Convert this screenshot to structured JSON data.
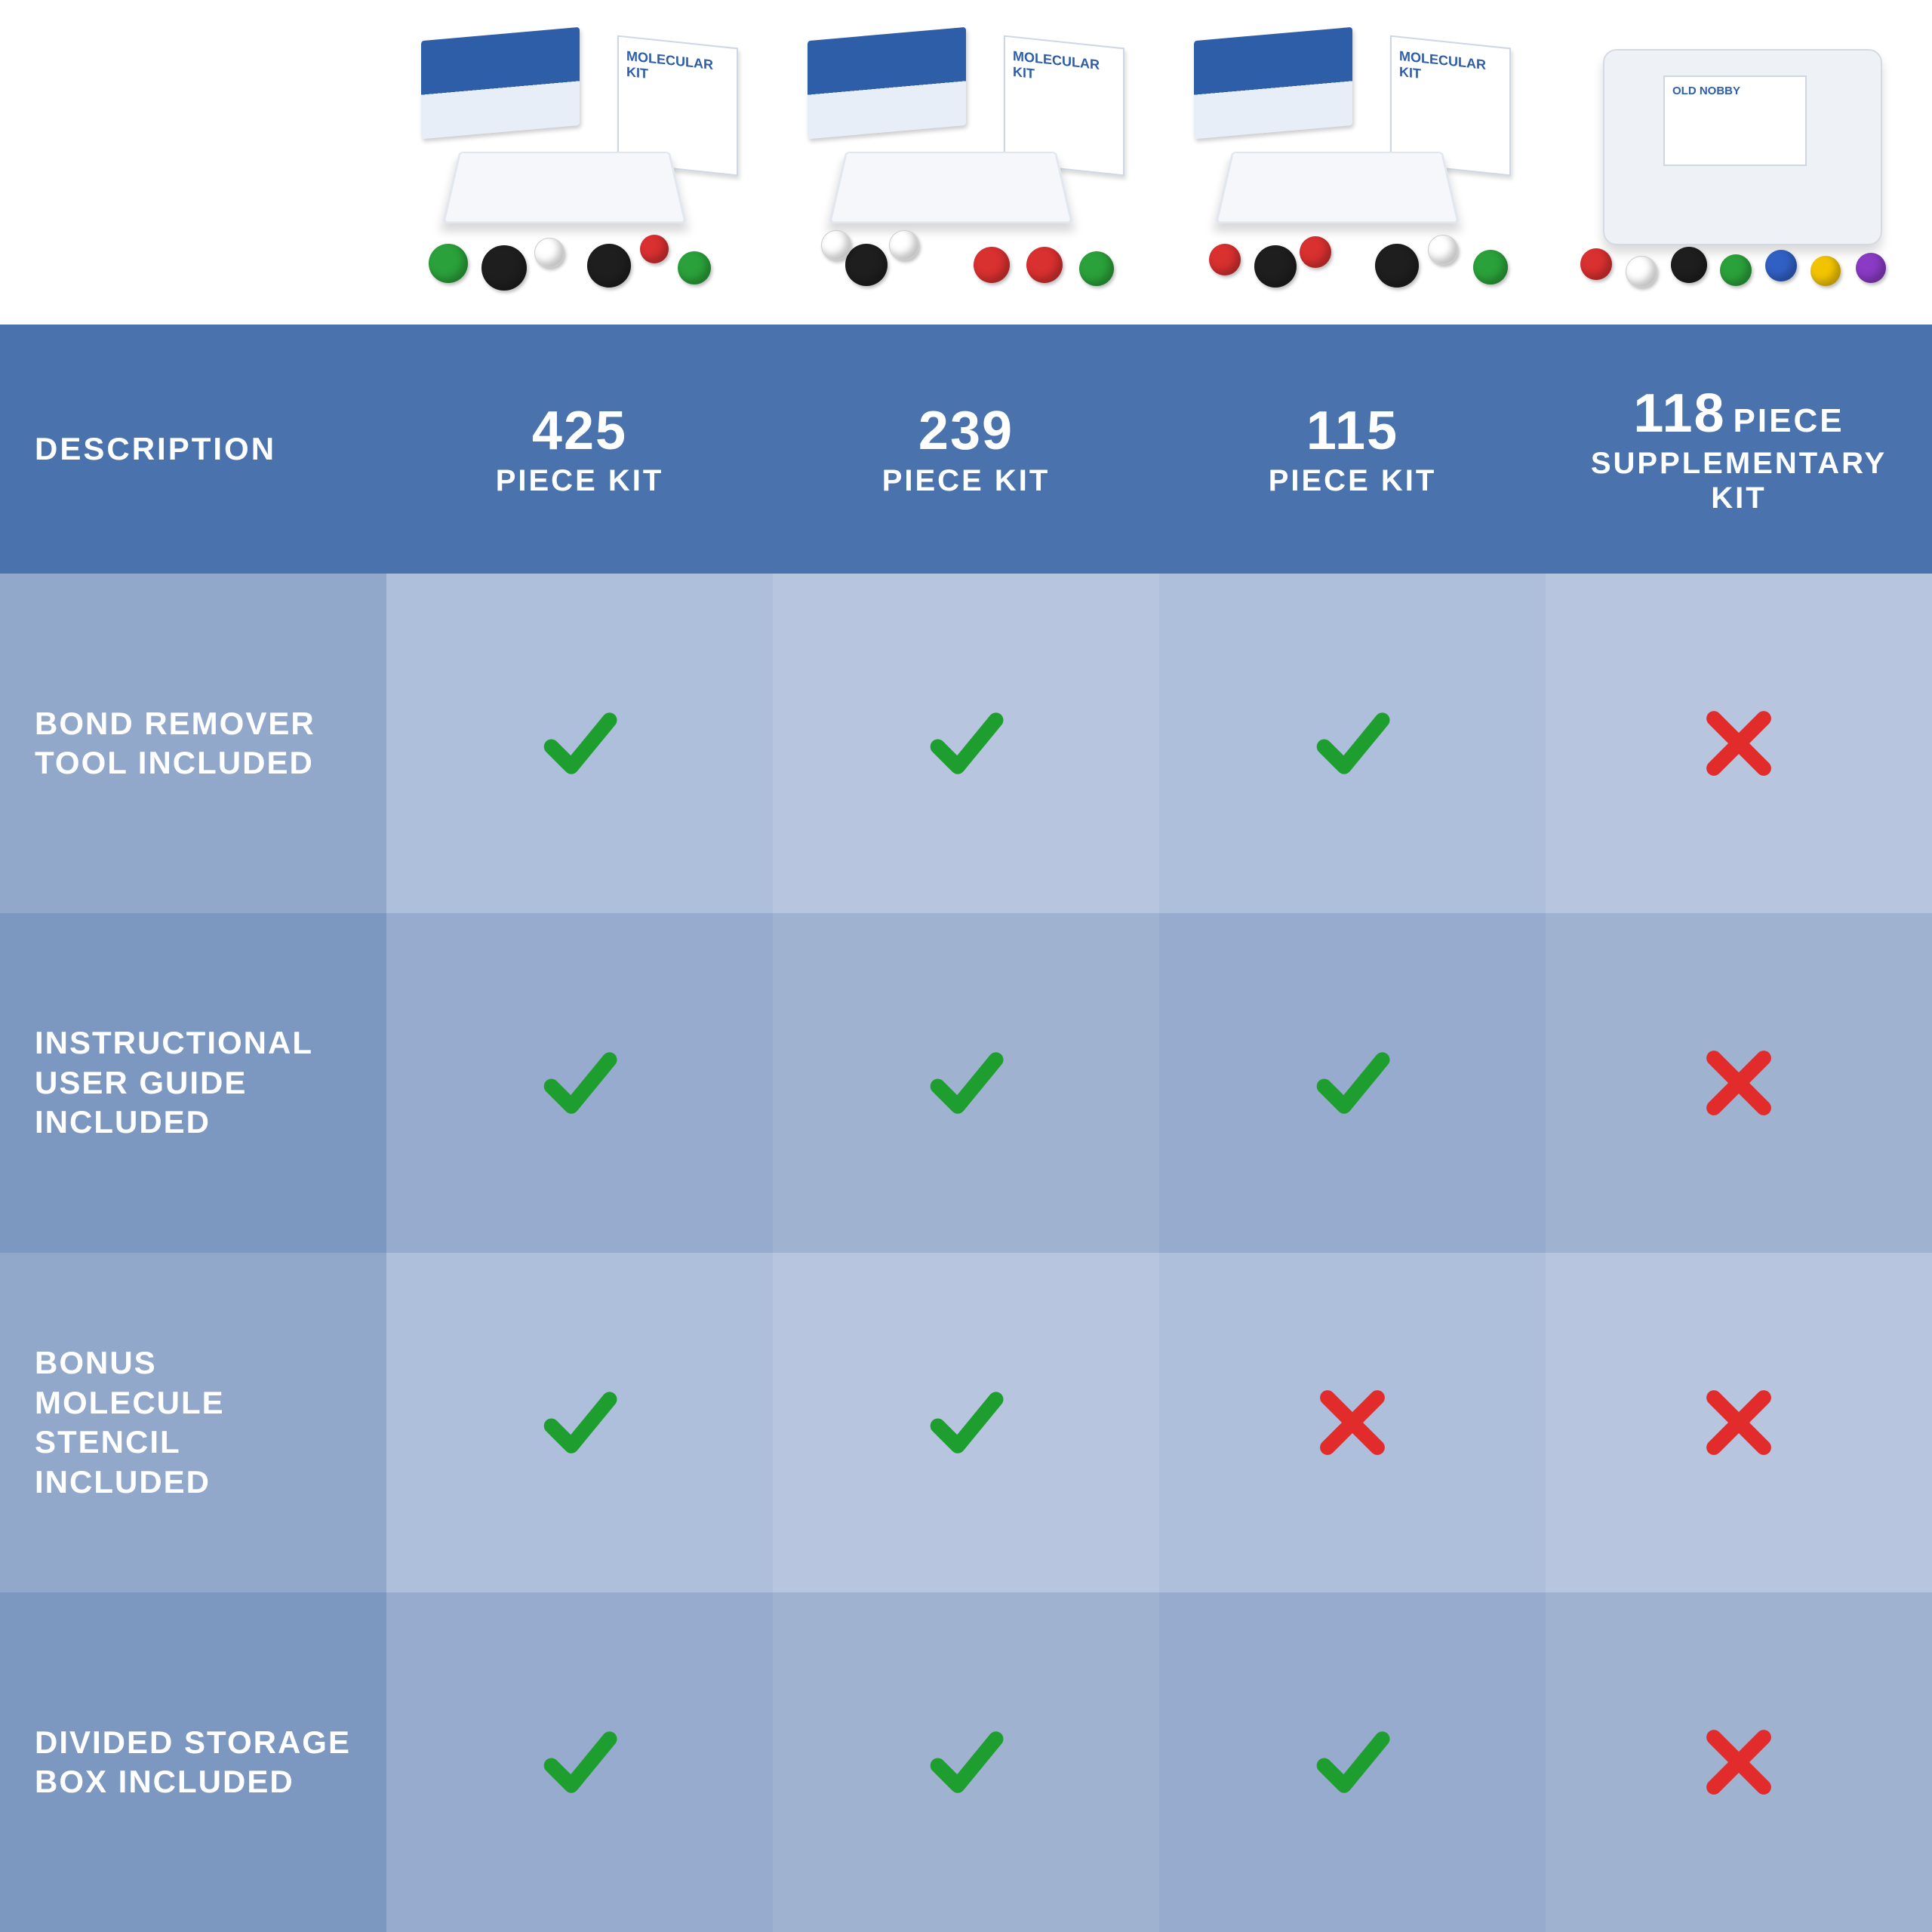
{
  "brand": "OLD NOBBY",
  "product_label": "MOLECULAR KIT",
  "header": {
    "description_label": "DESCRIPTION",
    "columns": [
      {
        "number": "425",
        "sub": "PIECE KIT",
        "inline_piece": false
      },
      {
        "number": "239",
        "sub": "PIECE KIT",
        "inline_piece": false
      },
      {
        "number": "115",
        "sub": "PIECE KIT",
        "inline_piece": false
      },
      {
        "number": "118",
        "sub": "SUPPLEMENTARY KIT",
        "inline_piece": true,
        "piece_word": "PIECE"
      }
    ]
  },
  "rows": [
    {
      "label": "BOND REMOVER TOOL INCLUDED",
      "values": [
        "check",
        "check",
        "check",
        "cross"
      ]
    },
    {
      "label": "INSTRUCTIONAL USER GUIDE INCLUDED",
      "values": [
        "check",
        "check",
        "check",
        "cross"
      ]
    },
    {
      "label": "BONUS MOLECULE STENCIL INCLUDED",
      "values": [
        "check",
        "check",
        "cross",
        "cross"
      ]
    },
    {
      "label": "DIVIDED STORAGE BOX INCLUDED",
      "values": [
        "check",
        "check",
        "check",
        "cross"
      ]
    }
  ],
  "colors": {
    "header_bg": "#4a73ad",
    "row_bg_light": "#b7c6de",
    "row_bg_dark": "#9fb3d1",
    "label_bg_light": "#91a8ca",
    "label_bg_dark": "#7c97c0",
    "cell_alt_overlay_light": "#aebfdb",
    "cell_alt_overlay_dark": "#96abcd",
    "check": "#1e9e2e",
    "cross": "#e22b2b",
    "text": "#ffffff"
  },
  "ball_colors": [
    "#1e1e1e",
    "#ffffff",
    "#2aa13a",
    "#d93030",
    "#3060c4",
    "#f2c400",
    "#8a3ac4",
    "#9aa0a6"
  ]
}
